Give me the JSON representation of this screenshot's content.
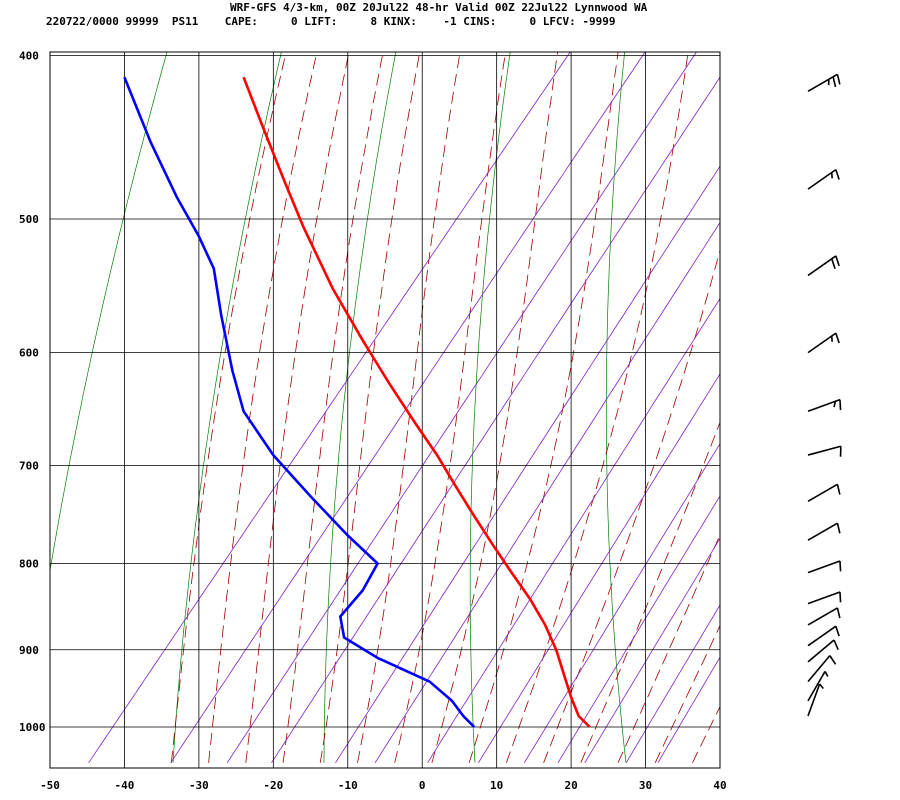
{
  "header": {
    "title": "WRF-GFS 4/3-km, 00Z 20Jul22 48-hr Valid 00Z 22Jul22 Lynnwood WA",
    "info": "220722/0000 99999  PS11    CAPE:     0 LIFT:     8 KINX:    -1 CINS:     0 LFCV: -9999"
  },
  "chart_data": {
    "type": "line",
    "diagram": "skew-T log-p",
    "x_ticks": [
      "-50",
      "-40",
      "-30",
      "-20",
      "-10",
      "0",
      "10",
      "20",
      "30",
      "40"
    ],
    "y_ticks": [
      "400",
      "500",
      "600",
      "700",
      "800",
      "900",
      "1000"
    ],
    "xlim": [
      -50,
      40
    ],
    "ylim": [
      1040,
      400
    ],
    "grid": true,
    "colors": {
      "temperature": "#ff0000",
      "dewpoint": "#0000ff",
      "isotherm": "#000000",
      "dry_adiabat": "#008000",
      "moist_adiabat": "#a00000",
      "mixing_ratio": "#8020c0"
    },
    "series": [
      {
        "points": [
          [
            -24.0,
            412
          ],
          [
            -21.5,
            440
          ],
          [
            -18.5,
            475
          ],
          [
            -16.0,
            505
          ],
          [
            -12.0,
            550
          ],
          [
            -8.0,
            590
          ],
          [
            -4.5,
            625
          ],
          [
            -1.0,
            660
          ],
          [
            2.0,
            690
          ],
          [
            4.5,
            720
          ],
          [
            7.0,
            750
          ],
          [
            9.5,
            780
          ],
          [
            12.0,
            810
          ],
          [
            14.5,
            840
          ],
          [
            16.5,
            870
          ],
          [
            18.0,
            900
          ],
          [
            19.0,
            930
          ],
          [
            20.0,
            960
          ],
          [
            21.0,
            985
          ],
          [
            22.5,
            1000
          ]
        ]
      },
      {
        "points": [
          [
            -40.0,
            412
          ],
          [
            -36.5,
            450
          ],
          [
            -33.0,
            485
          ],
          [
            -30.0,
            512
          ],
          [
            -28.0,
            535
          ],
          [
            -27.0,
            570
          ],
          [
            -25.5,
            615
          ],
          [
            -24.0,
            650
          ],
          [
            -20.0,
            690
          ],
          [
            -15.0,
            730
          ],
          [
            -10.0,
            770
          ],
          [
            -6.0,
            800
          ],
          [
            -8.0,
            830
          ],
          [
            -11.0,
            860
          ],
          [
            -10.5,
            885
          ],
          [
            -6.0,
            910
          ],
          [
            1.0,
            940
          ],
          [
            4.0,
            965
          ],
          [
            5.5,
            985
          ],
          [
            7.0,
            1000
          ]
        ]
      }
    ],
    "wind_barbs": [
      {
        "pressure": 420,
        "direction": 240,
        "speed_kt": 25
      },
      {
        "pressure": 480,
        "direction": 235,
        "speed_kt": 15
      },
      {
        "pressure": 540,
        "direction": 235,
        "speed_kt": 20
      },
      {
        "pressure": 600,
        "direction": 235,
        "speed_kt": 15
      },
      {
        "pressure": 650,
        "direction": 250,
        "speed_kt": 15
      },
      {
        "pressure": 690,
        "direction": 255,
        "speed_kt": 10
      },
      {
        "pressure": 735,
        "direction": 240,
        "speed_kt": 10
      },
      {
        "pressure": 775,
        "direction": 240,
        "speed_kt": 10
      },
      {
        "pressure": 810,
        "direction": 250,
        "speed_kt": 10
      },
      {
        "pressure": 845,
        "direction": 250,
        "speed_kt": 10
      },
      {
        "pressure": 870,
        "direction": 240,
        "speed_kt": 10
      },
      {
        "pressure": 895,
        "direction": 235,
        "speed_kt": 10
      },
      {
        "pressure": 915,
        "direction": 230,
        "speed_kt": 10
      },
      {
        "pressure": 940,
        "direction": 220,
        "speed_kt": 10
      },
      {
        "pressure": 965,
        "direction": 210,
        "speed_kt": 5
      },
      {
        "pressure": 985,
        "direction": 200,
        "speed_kt": 5
      }
    ]
  }
}
